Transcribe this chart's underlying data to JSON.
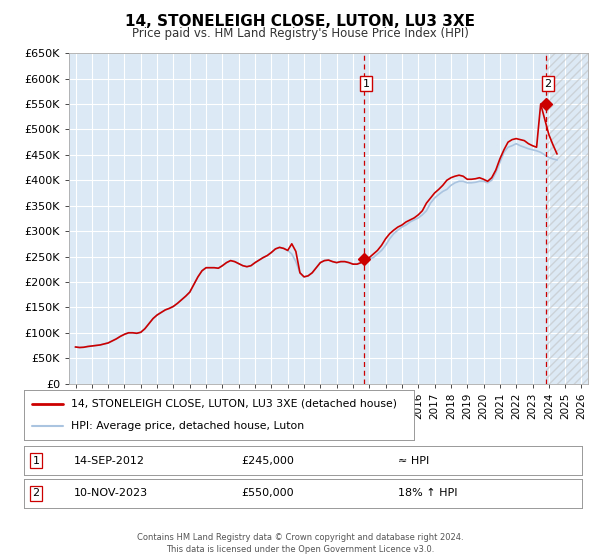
{
  "title": "14, STONELEIGH CLOSE, LUTON, LU3 3XE",
  "subtitle": "Price paid vs. HM Land Registry's House Price Index (HPI)",
  "outer_bg": "#ffffff",
  "plot_background": "#dce9f5",
  "grid_color": "#ffffff",
  "hpi_line_color": "#aac4e0",
  "price_line_color": "#cc0000",
  "marker_color": "#cc0000",
  "vline_color": "#cc0000",
  "ylim": [
    0,
    650000
  ],
  "yticks": [
    0,
    50000,
    100000,
    150000,
    200000,
    250000,
    300000,
    350000,
    400000,
    450000,
    500000,
    550000,
    600000,
    650000
  ],
  "xlim_start": 1994.6,
  "xlim_end": 2026.4,
  "sale1_x": 2012.7,
  "sale1_y": 245000,
  "sale1_label": "1",
  "sale1_date": "14-SEP-2012",
  "sale1_price": "£245,000",
  "sale1_hpi": "≈ HPI",
  "sale2_x": 2023.85,
  "sale2_y": 550000,
  "sale2_label": "2",
  "sale2_date": "10-NOV-2023",
  "sale2_price": "£550,000",
  "sale2_hpi": "18% ↑ HPI",
  "legend_line1": "14, STONELEIGH CLOSE, LUTON, LU3 3XE (detached house)",
  "legend_line2": "HPI: Average price, detached house, Luton",
  "footer": "Contains HM Land Registry data © Crown copyright and database right 2024.\nThis data is licensed under the Open Government Licence v3.0.",
  "hpi_data_x": [
    1995.0,
    1995.25,
    1995.5,
    1995.75,
    1996.0,
    1996.25,
    1996.5,
    1996.75,
    1997.0,
    1997.25,
    1997.5,
    1997.75,
    1998.0,
    1998.25,
    1998.5,
    1998.75,
    1999.0,
    1999.25,
    1999.5,
    1999.75,
    2000.0,
    2000.25,
    2000.5,
    2000.75,
    2001.0,
    2001.25,
    2001.5,
    2001.75,
    2002.0,
    2002.25,
    2002.5,
    2002.75,
    2003.0,
    2003.25,
    2003.5,
    2003.75,
    2004.0,
    2004.25,
    2004.5,
    2004.75,
    2005.0,
    2005.25,
    2005.5,
    2005.75,
    2006.0,
    2006.25,
    2006.5,
    2006.75,
    2007.0,
    2007.25,
    2007.5,
    2007.75,
    2008.0,
    2008.25,
    2008.5,
    2008.75,
    2009.0,
    2009.25,
    2009.5,
    2009.75,
    2010.0,
    2010.25,
    2010.5,
    2010.75,
    2011.0,
    2011.25,
    2011.5,
    2011.75,
    2012.0,
    2012.25,
    2012.5,
    2012.75,
    2013.0,
    2013.25,
    2013.5,
    2013.75,
    2014.0,
    2014.25,
    2014.5,
    2014.75,
    2015.0,
    2015.25,
    2015.5,
    2015.75,
    2016.0,
    2016.25,
    2016.5,
    2016.75,
    2017.0,
    2017.25,
    2017.5,
    2017.75,
    2018.0,
    2018.25,
    2018.5,
    2018.75,
    2019.0,
    2019.25,
    2019.5,
    2019.75,
    2020.0,
    2020.25,
    2020.5,
    2020.75,
    2021.0,
    2021.25,
    2021.5,
    2021.75,
    2022.0,
    2022.25,
    2022.5,
    2022.75,
    2023.0,
    2023.25,
    2023.5,
    2023.75,
    2024.0,
    2024.25,
    2024.5
  ],
  "hpi_data_y": [
    72000,
    71000,
    71500,
    73000,
    74000,
    75000,
    76000,
    78000,
    80000,
    84000,
    88000,
    93000,
    97000,
    100000,
    100000,
    99000,
    101000,
    108000,
    118000,
    128000,
    135000,
    140000,
    145000,
    148000,
    152000,
    158000,
    165000,
    172000,
    180000,
    195000,
    210000,
    222000,
    228000,
    228000,
    228000,
    227000,
    232000,
    238000,
    242000,
    240000,
    236000,
    232000,
    230000,
    232000,
    238000,
    243000,
    248000,
    252000,
    258000,
    265000,
    268000,
    266000,
    262000,
    255000,
    240000,
    218000,
    210000,
    212000,
    218000,
    228000,
    238000,
    242000,
    243000,
    240000,
    238000,
    240000,
    240000,
    238000,
    235000,
    235000,
    238000,
    242000,
    245000,
    248000,
    255000,
    262000,
    272000,
    285000,
    295000,
    302000,
    308000,
    312000,
    318000,
    322000,
    326000,
    332000,
    340000,
    355000,
    365000,
    372000,
    378000,
    382000,
    390000,
    395000,
    398000,
    398000,
    395000,
    395000,
    396000,
    398000,
    398000,
    395000,
    400000,
    415000,
    435000,
    455000,
    465000,
    468000,
    472000,
    468000,
    465000,
    462000,
    460000,
    458000,
    455000,
    450000,
    445000,
    442000,
    440000
  ],
  "price_paid_x": [
    1995.0,
    1995.25,
    1995.5,
    1995.75,
    1996.0,
    1996.25,
    1996.5,
    1996.75,
    1997.0,
    1997.25,
    1997.5,
    1997.75,
    1998.0,
    1998.25,
    1998.5,
    1998.75,
    1999.0,
    1999.25,
    1999.5,
    1999.75,
    2000.0,
    2000.25,
    2000.5,
    2000.75,
    2001.0,
    2001.25,
    2001.5,
    2001.75,
    2002.0,
    2002.25,
    2002.5,
    2002.75,
    2003.0,
    2003.25,
    2003.5,
    2003.75,
    2004.0,
    2004.25,
    2004.5,
    2004.75,
    2005.0,
    2005.25,
    2005.5,
    2005.75,
    2006.0,
    2006.25,
    2006.5,
    2006.75,
    2007.0,
    2007.25,
    2007.5,
    2007.75,
    2008.0,
    2008.25,
    2008.5,
    2008.75,
    2009.0,
    2009.25,
    2009.5,
    2009.75,
    2010.0,
    2010.25,
    2010.5,
    2010.75,
    2011.0,
    2011.25,
    2011.5,
    2011.75,
    2012.0,
    2012.25,
    2012.5,
    2012.75,
    2013.0,
    2013.25,
    2013.5,
    2013.75,
    2014.0,
    2014.25,
    2014.5,
    2014.75,
    2015.0,
    2015.25,
    2015.5,
    2015.75,
    2016.0,
    2016.25,
    2016.5,
    2016.75,
    2017.0,
    2017.25,
    2017.5,
    2017.75,
    2018.0,
    2018.25,
    2018.5,
    2018.75,
    2019.0,
    2019.25,
    2019.5,
    2019.75,
    2020.0,
    2020.25,
    2020.5,
    2020.75,
    2021.0,
    2021.25,
    2021.5,
    2021.75,
    2022.0,
    2022.25,
    2022.5,
    2022.75,
    2023.0,
    2023.25,
    2023.5,
    2023.75,
    2024.0,
    2024.25,
    2024.5
  ],
  "price_paid_y": [
    72000,
    71000,
    71500,
    73000,
    74000,
    75000,
    76000,
    78000,
    80000,
    84000,
    88000,
    93000,
    97000,
    100000,
    100000,
    99000,
    101000,
    108000,
    118000,
    128000,
    135000,
    140000,
    145000,
    148000,
    152000,
    158000,
    165000,
    172000,
    180000,
    195000,
    210000,
    222000,
    228000,
    228000,
    228000,
    227000,
    232000,
    238000,
    242000,
    240000,
    236000,
    232000,
    230000,
    232000,
    238000,
    243000,
    248000,
    252000,
    258000,
    265000,
    268000,
    266000,
    262000,
    275000,
    260000,
    218000,
    210000,
    212000,
    218000,
    228000,
    238000,
    242000,
    243000,
    240000,
    238000,
    240000,
    240000,
    238000,
    235000,
    235000,
    238000,
    245000,
    248000,
    255000,
    262000,
    272000,
    285000,
    295000,
    302000,
    308000,
    312000,
    318000,
    322000,
    326000,
    332000,
    340000,
    355000,
    365000,
    375000,
    382000,
    390000,
    400000,
    405000,
    408000,
    410000,
    408000,
    402000,
    402000,
    403000,
    405000,
    402000,
    398000,
    405000,
    420000,
    442000,
    460000,
    475000,
    480000,
    482000,
    480000,
    478000,
    472000,
    468000,
    465000,
    550000,
    520000,
    490000,
    470000,
    452000
  ]
}
